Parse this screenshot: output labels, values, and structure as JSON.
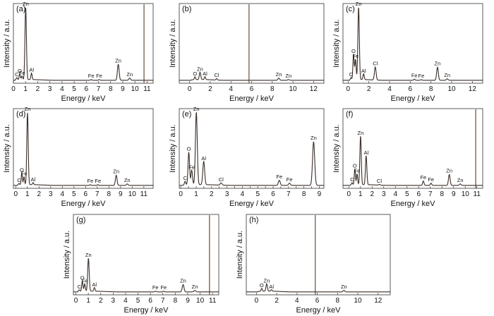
{
  "chart_data": [
    {
      "type": "line",
      "panel": "(a)",
      "xlabel": "Energy / keV",
      "ylabel": "Intensity / a.u.",
      "xlim": [
        0,
        11.5
      ],
      "ylim": [
        0,
        100
      ],
      "xticks": [
        0,
        1,
        2,
        3,
        4,
        5,
        6,
        7,
        8,
        9,
        10,
        11
      ],
      "marker_line_x": 10.75,
      "peaks": [
        {
          "x": 0.28,
          "y": 3,
          "w": 0.05,
          "label": "C"
        },
        {
          "x": 0.52,
          "y": 8,
          "w": 0.05,
          "label": "O"
        },
        {
          "x": 0.71,
          "y": 5,
          "w": 0.05,
          "label": "Fe"
        },
        {
          "x": 1.01,
          "y": 100,
          "w": 0.06,
          "label": "Zn"
        },
        {
          "x": 1.49,
          "y": 9,
          "w": 0.05,
          "label": "Al"
        },
        {
          "x": 6.4,
          "y": 1,
          "w": 0.05,
          "label": "Fe"
        },
        {
          "x": 7.06,
          "y": 1,
          "w": 0.05,
          "label": "Fe"
        },
        {
          "x": 8.63,
          "y": 22,
          "w": 0.07,
          "label": "Zn"
        },
        {
          "x": 9.57,
          "y": 3,
          "w": 0.07,
          "label": "Zn"
        }
      ]
    },
    {
      "type": "line",
      "panel": "(b)",
      "xlabel": "Energy / keV",
      "ylabel": "Intensity / a.u.",
      "xlim": [
        -1,
        13
      ],
      "ylim": [
        0,
        100
      ],
      "xticks": [
        0,
        2,
        4,
        6,
        8,
        10,
        12
      ],
      "marker_line_x": 5.75,
      "peaks": [
        {
          "x": 0.52,
          "y": 4,
          "w": 0.06,
          "label": "O"
        },
        {
          "x": 1.01,
          "y": 10,
          "w": 0.07,
          "label": "Zn"
        },
        {
          "x": 1.49,
          "y": 4,
          "w": 0.06,
          "label": "Al"
        },
        {
          "x": 2.62,
          "y": 2,
          "w": 0.06,
          "label": "Cl"
        },
        {
          "x": 8.63,
          "y": 3,
          "w": 0.08,
          "label": "Zn"
        },
        {
          "x": 9.57,
          "y": 1,
          "w": 0.08,
          "label": "Zn"
        }
      ]
    },
    {
      "type": "line",
      "panel": "(c)",
      "xlabel": "Energy / keV",
      "ylabel": "Intensity / a.u.",
      "xlim": [
        -0.5,
        13
      ],
      "ylim": [
        0,
        100
      ],
      "xticks": [
        0,
        2,
        4,
        6,
        8,
        10,
        12
      ],
      "peaks": [
        {
          "x": 0.28,
          "y": 3,
          "w": 0.05,
          "label": "C"
        },
        {
          "x": 0.52,
          "y": 35,
          "w": 0.06,
          "label": "O"
        },
        {
          "x": 0.71,
          "y": 28,
          "w": 0.06,
          "label": "Fe"
        },
        {
          "x": 1.01,
          "y": 100,
          "w": 0.07,
          "label": "Zn"
        },
        {
          "x": 1.49,
          "y": 8,
          "w": 0.06,
          "label": "Al"
        },
        {
          "x": 2.62,
          "y": 18,
          "w": 0.08,
          "label": "Cl"
        },
        {
          "x": 6.4,
          "y": 1.5,
          "w": 0.06,
          "label": "Fe"
        },
        {
          "x": 7.06,
          "y": 1,
          "w": 0.06,
          "label": "Fe"
        },
        {
          "x": 8.63,
          "y": 18,
          "w": 0.08,
          "label": "Zn"
        },
        {
          "x": 9.57,
          "y": 2,
          "w": 0.08,
          "label": "Zn"
        }
      ]
    },
    {
      "type": "line",
      "panel": "(d)",
      "xlabel": "Energy / keV",
      "ylabel": "Intensity / a.u.",
      "xlim": [
        -0.2,
        11.8
      ],
      "ylim": [
        0,
        100
      ],
      "xticks": [
        0,
        1,
        2,
        3,
        4,
        5,
        6,
        7,
        8,
        9,
        10,
        11
      ],
      "peaks": [
        {
          "x": 0.28,
          "y": 2,
          "w": 0.05,
          "label": "C"
        },
        {
          "x": 0.52,
          "y": 16,
          "w": 0.05,
          "label": "O"
        },
        {
          "x": 0.71,
          "y": 11,
          "w": 0.05,
          "label": "Fe"
        },
        {
          "x": 1.01,
          "y": 100,
          "w": 0.06,
          "label": "Zn"
        },
        {
          "x": 1.49,
          "y": 3,
          "w": 0.05,
          "label": "Al"
        },
        {
          "x": 6.4,
          "y": 1,
          "w": 0.05,
          "label": "Fe"
        },
        {
          "x": 7.06,
          "y": 1,
          "w": 0.05,
          "label": "Fe"
        },
        {
          "x": 8.63,
          "y": 14,
          "w": 0.07,
          "label": "Zn"
        },
        {
          "x": 9.57,
          "y": 2,
          "w": 0.07,
          "label": "Zn"
        }
      ]
    },
    {
      "type": "line",
      "panel": "(e)",
      "xlabel": "Energy / keV",
      "ylabel": "Intensity / a.u.",
      "xlim": [
        -0.1,
        9.3
      ],
      "ylim": [
        0,
        100
      ],
      "xticks": [
        0,
        0.5,
        1,
        1.5,
        2,
        2.5,
        3,
        3.5,
        4,
        4.5,
        5,
        5.5,
        6,
        6.5,
        7,
        7.5,
        8,
        8.5,
        9
      ],
      "xticklabels": [
        "0",
        "",
        "1",
        "",
        "2",
        "",
        "3",
        "",
        "4",
        "",
        "5",
        "",
        "6",
        "",
        "7",
        "",
        "8",
        "",
        "9"
      ],
      "peaks": [
        {
          "x": 0.28,
          "y": 5,
          "w": 0.04,
          "label": "C"
        },
        {
          "x": 0.52,
          "y": 45,
          "w": 0.05,
          "label": "O"
        },
        {
          "x": 0.71,
          "y": 20,
          "w": 0.05,
          "label": "Fe"
        },
        {
          "x": 1.01,
          "y": 100,
          "w": 0.06,
          "label": "Zn"
        },
        {
          "x": 1.49,
          "y": 32,
          "w": 0.06,
          "label": "Al"
        },
        {
          "x": 2.62,
          "y": 3,
          "w": 0.06,
          "label": "Cl"
        },
        {
          "x": 6.4,
          "y": 7,
          "w": 0.06,
          "label": "Fe"
        },
        {
          "x": 7.06,
          "y": 3,
          "w": 0.06,
          "label": "Fe"
        },
        {
          "x": 8.63,
          "y": 60,
          "w": 0.07,
          "label": "Zn"
        }
      ]
    },
    {
      "type": "line",
      "panel": "(f)",
      "xlabel": "Energy / keV",
      "ylabel": "Intensity / a.u.",
      "xlim": [
        -0.5,
        11.5
      ],
      "ylim": [
        0,
        100
      ],
      "xticks": [
        0,
        1,
        2,
        3,
        4,
        5,
        6,
        7,
        8,
        9,
        10,
        11
      ],
      "marker_line_x": 10.9,
      "peaks": [
        {
          "x": 0.28,
          "y": 3,
          "w": 0.05,
          "label": "C"
        },
        {
          "x": 0.52,
          "y": 22,
          "w": 0.05,
          "label": "O"
        },
        {
          "x": 0.71,
          "y": 15,
          "w": 0.05,
          "label": "Fe"
        },
        {
          "x": 1.01,
          "y": 67,
          "w": 0.06,
          "label": "Zn"
        },
        {
          "x": 1.49,
          "y": 40,
          "w": 0.06,
          "label": "Al"
        },
        {
          "x": 2.62,
          "y": 1,
          "w": 0.06,
          "label": "Cl"
        },
        {
          "x": 6.4,
          "y": 6,
          "w": 0.06,
          "label": "Fe"
        },
        {
          "x": 7.06,
          "y": 3,
          "w": 0.06,
          "label": "Fe"
        },
        {
          "x": 8.63,
          "y": 15,
          "w": 0.07,
          "label": "Zn"
        },
        {
          "x": 9.57,
          "y": 2,
          "w": 0.07,
          "label": "Zn"
        }
      ]
    },
    {
      "type": "line",
      "panel": "(g)",
      "xlabel": "Energy / keV",
      "ylabel": "Intensity / a.u.",
      "xlim": [
        -0.2,
        11.5
      ],
      "ylim": [
        0,
        100
      ],
      "xticks": [
        0,
        1,
        2,
        3,
        4,
        5,
        6,
        7,
        8,
        9,
        10,
        11
      ],
      "marker_line_x": 10.75,
      "peaks": [
        {
          "x": 0.28,
          "y": 2,
          "w": 0.05,
          "label": "C"
        },
        {
          "x": 0.52,
          "y": 14,
          "w": 0.05,
          "label": "O"
        },
        {
          "x": 0.71,
          "y": 10,
          "w": 0.05,
          "label": "Fe"
        },
        {
          "x": 1.01,
          "y": 45,
          "w": 0.06,
          "label": "Zn"
        },
        {
          "x": 1.49,
          "y": 5,
          "w": 0.05,
          "label": "Al"
        },
        {
          "x": 6.4,
          "y": 1,
          "w": 0.05,
          "label": "Fe"
        },
        {
          "x": 7.06,
          "y": 1,
          "w": 0.05,
          "label": "Fe"
        },
        {
          "x": 8.63,
          "y": 10,
          "w": 0.07,
          "label": "Zn"
        },
        {
          "x": 9.57,
          "y": 2,
          "w": 0.07,
          "label": "Zn"
        }
      ]
    },
    {
      "type": "line",
      "panel": "(h)",
      "xlabel": "Energy / keV",
      "ylabel": "Intensity / a.u.",
      "xlim": [
        -1,
        13.2
      ],
      "ylim": [
        0,
        100
      ],
      "xticks": [
        0,
        2,
        4,
        6,
        8,
        10,
        12
      ],
      "marker_line_x": 5.8,
      "peaks": [
        {
          "x": 0.52,
          "y": 4,
          "w": 0.06,
          "label": "O"
        },
        {
          "x": 1.01,
          "y": 10,
          "w": 0.07,
          "label": "Zn"
        },
        {
          "x": 1.49,
          "y": 2,
          "w": 0.06,
          "label": "Al"
        },
        {
          "x": 8.63,
          "y": 2,
          "w": 0.08,
          "label": "Zn"
        }
      ]
    }
  ]
}
